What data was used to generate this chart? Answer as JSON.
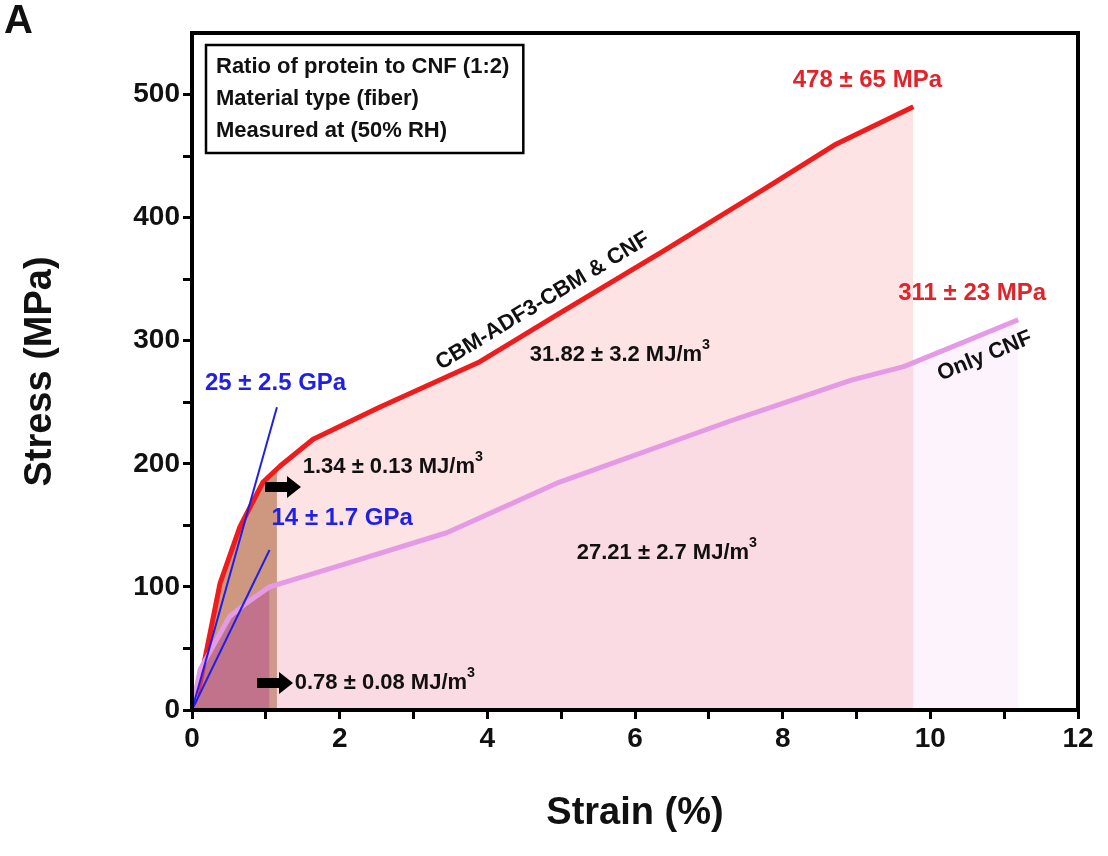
{
  "chart_data": {
    "type": "line",
    "title": "A",
    "xlabel": "Strain (%)",
    "ylabel": "Stress (MPa)",
    "xlim": [
      0,
      12
    ],
    "xticks": [
      0,
      {
        "value": 1,
        "label": null
      },
      2,
      {
        "value": 3,
        "label": null
      },
      4,
      {
        "value": 5,
        "label": null
      },
      6,
      {
        "value": 7,
        "label": null
      },
      8,
      {
        "value": 9,
        "label": null
      },
      10,
      {
        "value": 11,
        "label": null
      },
      12
    ],
    "ylim": [
      0,
      550
    ],
    "yticks": [
      0,
      {
        "value": 50,
        "label": null
      },
      100,
      {
        "value": 150,
        "label": null
      },
      200,
      {
        "value": 250,
        "label": null
      },
      300,
      {
        "value": 350,
        "label": null
      },
      400,
      {
        "value": 450,
        "label": null
      },
      500
    ],
    "series": [
      {
        "type": "area",
        "color": "#c9a98f",
        "x": [
          0,
          0.11,
          0.38,
          0.65,
          0.96,
          1.15
        ],
        "values": [
          0,
          22,
          103,
          149,
          185,
          196
        ]
      },
      {
        "type": "area",
        "color": "#b57a8e",
        "x": [
          0,
          0.11,
          0.51,
          0.74,
          1.05
        ],
        "values": [
          0,
          33,
          76,
          87,
          100
        ]
      },
      {
        "type": "area",
        "name": "CBM-ADF3-CBM & CNF",
        "color": "#ee1c1c",
        "x": [
          0,
          0.11,
          0.38,
          0.65,
          0.96,
          1.19,
          1.64,
          2.54,
          3.9,
          4.97,
          6.36,
          7.77,
          8.7,
          9.77
        ],
        "values": [
          0,
          22,
          103,
          149,
          185,
          198,
          220,
          246,
          283,
          322,
          372,
          424,
          459,
          490
        ]
      },
      {
        "type": "area",
        "name": "Only CNF",
        "color": "#e59ae6",
        "x": [
          0,
          0.11,
          0.51,
          0.74,
          1.05,
          2.09,
          3.45,
          4.97,
          7.3,
          8.93,
          9.64,
          11.19
        ],
        "values": [
          0,
          33,
          76,
          87,
          100,
          119,
          144,
          185,
          235,
          268,
          279,
          317
        ]
      },
      {
        "type": "line",
        "name": "25 ± 2.5 GPa",
        "color": "#1f1fe6",
        "x": [
          0,
          1.15
        ],
        "values": [
          0,
          246
        ]
      },
      {
        "type": "line",
        "name": "14 ± 1.7 GPa",
        "color": "#1f1fe6",
        "x": [
          0,
          1.05
        ],
        "values": [
          0,
          130
        ]
      }
    ],
    "annotations": [
      "Ratio of protein to CNF (1:2)",
      "Material type (fiber)",
      "Measured at (50% RH)",
      {
        "text": "478 ± 65 MPa",
        "x": 9.77,
        "y": 490
      },
      {
        "text": "311 ± 23 MPa",
        "x": 11.19,
        "y": 317
      },
      "31.82 ± 3.2 MJ/m$^{3}$",
      "27.21 ± 2.7 MJ/m$^{3}$",
      "1.34 ± 0.13 MJ/m$^{3}$",
      "0.78 ± 0.08 MJ/m$^{3}$"
    ],
    "legend": false
  }
}
